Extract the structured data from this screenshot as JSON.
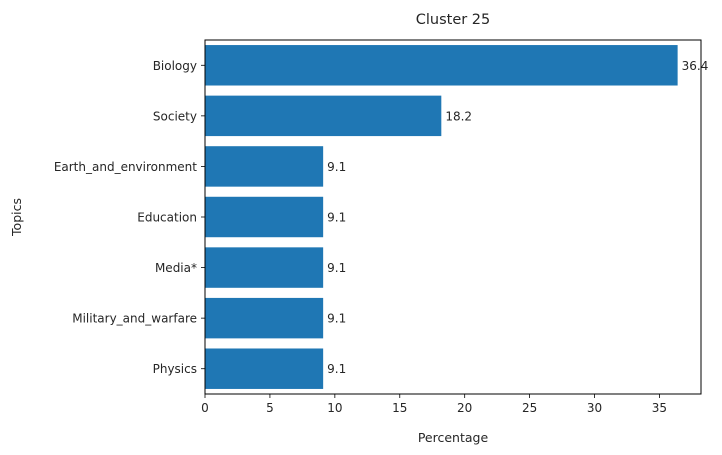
{
  "chart_data": {
    "type": "bar",
    "orientation": "horizontal",
    "title": "Cluster 25",
    "xlabel": "Percentage",
    "ylabel": "Topics",
    "categories": [
      "Biology",
      "Society",
      "Earth_and_environment",
      "Education",
      "Media*",
      "Military_and_warfare",
      "Physics"
    ],
    "values": [
      36.4,
      18.2,
      9.1,
      9.1,
      9.1,
      9.1,
      9.1
    ],
    "data_labels": [
      "36.4",
      "18.2",
      "9.1",
      "9.1",
      "9.1",
      "9.1",
      "9.1"
    ],
    "xlim": [
      0,
      38.2
    ],
    "xticks": [
      0,
      5,
      10,
      15,
      20,
      25,
      30,
      35
    ],
    "xtick_labels": [
      "0",
      "5",
      "10",
      "15",
      "20",
      "25",
      "30",
      "35"
    ],
    "grid": false,
    "legend": "none",
    "bar_color": "#1f77b4"
  }
}
